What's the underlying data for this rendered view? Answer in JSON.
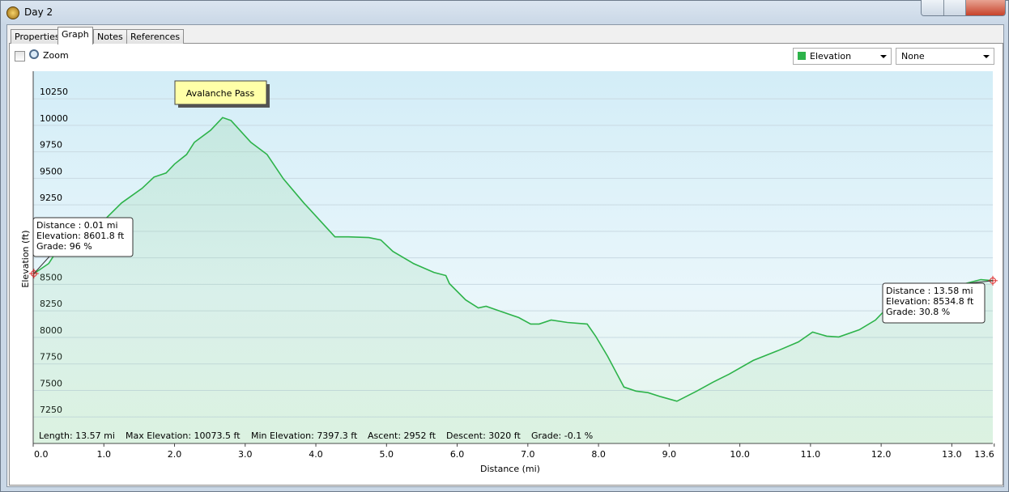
{
  "window": {
    "title": "Day 2"
  },
  "tabs": [
    "Properties",
    "Graph",
    "Notes",
    "References"
  ],
  "toolbar": {
    "zoom": "Zoom",
    "series_dropdown": "Elevation",
    "second_dropdown": "None"
  },
  "chart_data": {
    "type": "line",
    "x_label": "Distance  (mi)",
    "y_label": "Elevation (ft)",
    "x": [
      0.01,
      0.22,
      0.33,
      0.68,
      1.02,
      1.25,
      1.54,
      1.71,
      1.88,
      2.0,
      2.17,
      2.28,
      2.51,
      2.68,
      2.8,
      3.08,
      3.31,
      3.54,
      3.83,
      4.06,
      4.27,
      4.46,
      4.75,
      4.92,
      5.09,
      5.38,
      5.67,
      5.84,
      5.89,
      6.12,
      6.3,
      6.41,
      6.64,
      6.87,
      7.04,
      7.16,
      7.33,
      7.56,
      7.84,
      7.96,
      8.13,
      8.36,
      8.53,
      8.7,
      8.88,
      9.11,
      9.39,
      9.62,
      9.85,
      10.19,
      10.54,
      10.83,
      11.03,
      11.23,
      11.4,
      11.69,
      11.92,
      12.14,
      12.49,
      12.83,
      13.18,
      13.41,
      13.58
    ],
    "series": [
      {
        "name": "Elevation",
        "color": "#2db34a",
        "values": [
          8602,
          8697,
          8811,
          8963,
          9116,
          9268,
          9405,
          9512,
          9550,
          9634,
          9725,
          9839,
          9953,
          10073,
          10045,
          9839,
          9725,
          9496,
          9268,
          9101,
          8948,
          8948,
          8941,
          8918,
          8811,
          8697,
          8613,
          8583,
          8507,
          8354,
          8278,
          8293,
          8240,
          8187,
          8126,
          8126,
          8164,
          8141,
          8126,
          8011,
          7821,
          7532,
          7494,
          7479,
          7441,
          7398,
          7494,
          7578,
          7654,
          7783,
          7875,
          7958,
          8050,
          8012,
          8004,
          8072,
          8164,
          8316,
          8415,
          8468,
          8506,
          8545,
          8535
        ]
      }
    ],
    "xlim": [
      0,
      13.58
    ],
    "ylim": [
      7000,
      10510
    ],
    "xticks": [
      {
        "value": 0,
        "label": "0.0"
      },
      {
        "value": 1,
        "label": "1.0"
      },
      {
        "value": 2,
        "label": "2.0"
      },
      {
        "value": 3,
        "label": "3.0"
      },
      {
        "value": 4,
        "label": "4.0"
      },
      {
        "value": 5,
        "label": "5.0"
      },
      {
        "value": 6,
        "label": "6.0"
      },
      {
        "value": 7,
        "label": "7.0"
      },
      {
        "value": 8,
        "label": "8.0"
      },
      {
        "value": 9,
        "label": "9.0"
      },
      {
        "value": 10,
        "label": "10.0"
      },
      {
        "value": 11,
        "label": "11.0"
      },
      {
        "value": 12,
        "label": "12.0"
      },
      {
        "value": 13,
        "label": "13.0"
      },
      {
        "value": 13.6,
        "label": "13.6"
      }
    ],
    "yticks": [
      7250,
      7500,
      7750,
      8000,
      8250,
      8500,
      8750,
      9000,
      9250,
      9500,
      9750,
      10000,
      10250
    ],
    "grid": true,
    "annotation": "Avalanche Pass",
    "callouts": [
      [
        "Distance  : 0.01 mi",
        "Elevation: 8601.8 ft",
        "Grade: 96 %"
      ],
      [
        "Distance  : 13.58 mi",
        "Elevation: 8534.8 ft",
        "Grade: 30.8 %"
      ]
    ]
  },
  "stats": [
    "Length: 13.57 mi",
    "Max Elevation: 10073.5 ft",
    "Min Elevation: 7397.3 ft",
    "Ascent: 2952 ft",
    "Descent: 3020 ft",
    "Grade: -0.1 %"
  ]
}
